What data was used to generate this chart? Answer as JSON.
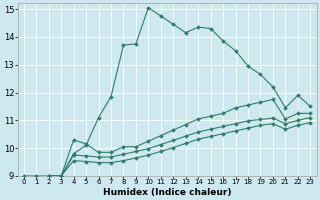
{
  "xlabel": "Humidex (Indice chaleur)",
  "xlim": [
    -0.5,
    23.5
  ],
  "ylim": [
    9,
    15.2
  ],
  "xticks": [
    0,
    1,
    2,
    3,
    4,
    5,
    6,
    7,
    8,
    9,
    10,
    11,
    12,
    13,
    14,
    15,
    16,
    17,
    18,
    19,
    20,
    21,
    22,
    23
  ],
  "yticks": [
    9,
    10,
    11,
    12,
    13,
    14,
    15
  ],
  "bg_color": "#cde8ee",
  "line_color": "#2e7d6e",
  "grid_color": "#ffffff",
  "curves": [
    {
      "x": [
        0,
        1,
        2,
        3,
        4,
        5,
        6,
        7,
        8,
        9,
        10,
        11,
        12,
        13,
        14,
        15,
        16,
        17,
        18,
        19,
        20,
        21,
        22,
        23
      ],
      "y": [
        9.0,
        9.0,
        9.0,
        9.0,
        9.8,
        10.1,
        11.1,
        11.85,
        13.7,
        13.75,
        15.05,
        14.75,
        14.45,
        14.15,
        14.35,
        14.3,
        13.85,
        13.5,
        12.95,
        12.65,
        12.2,
        11.45,
        11.9,
        11.5
      ]
    },
    {
      "x": [
        2,
        3,
        4,
        5,
        6,
        7,
        8,
        9,
        10,
        11,
        12,
        13,
        14,
        15,
        16,
        17,
        18,
        19,
        20,
        21,
        22,
        23
      ],
      "y": [
        9.0,
        9.0,
        10.3,
        10.15,
        9.85,
        9.85,
        10.05,
        10.05,
        10.25,
        10.45,
        10.65,
        10.85,
        11.05,
        11.15,
        11.25,
        11.45,
        11.55,
        11.65,
        11.75,
        11.05,
        11.25,
        11.25
      ]
    },
    {
      "x": [
        2,
        3,
        4,
        5,
        6,
        7,
        8,
        9,
        10,
        11,
        12,
        13,
        14,
        15,
        16,
        17,
        18,
        19,
        20,
        21,
        22,
        23
      ],
      "y": [
        9.0,
        9.0,
        9.75,
        9.72,
        9.68,
        9.68,
        9.78,
        9.88,
        9.98,
        10.13,
        10.28,
        10.43,
        10.58,
        10.68,
        10.78,
        10.88,
        10.98,
        11.03,
        11.08,
        10.88,
        11.0,
        11.1
      ]
    },
    {
      "x": [
        2,
        3,
        4,
        5,
        6,
        7,
        8,
        9,
        10,
        11,
        12,
        13,
        14,
        15,
        16,
        17,
        18,
        19,
        20,
        21,
        22,
        23
      ],
      "y": [
        9.0,
        9.0,
        9.55,
        9.52,
        9.48,
        9.48,
        9.55,
        9.65,
        9.75,
        9.88,
        10.02,
        10.17,
        10.32,
        10.42,
        10.52,
        10.62,
        10.72,
        10.82,
        10.88,
        10.68,
        10.82,
        10.92
      ]
    }
  ]
}
